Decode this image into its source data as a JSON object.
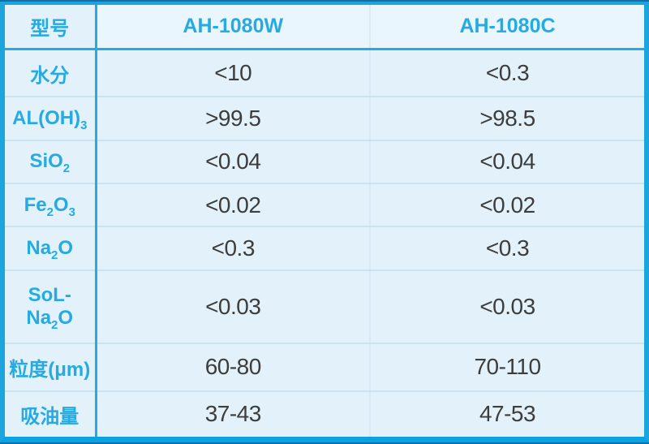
{
  "table": {
    "corner_label": "型号",
    "columns": [
      "AH-1080W",
      "AH-1080C"
    ],
    "rows": [
      {
        "label": [
          {
            "text": "水分"
          }
        ],
        "values": [
          "<10",
          "<0.3"
        ]
      },
      {
        "label": [
          {
            "text": "AL(OH)"
          },
          {
            "text": "3",
            "sub": true
          }
        ],
        "values": [
          ">99.5",
          ">98.5"
        ]
      },
      {
        "label": [
          {
            "text": "SiO"
          },
          {
            "text": "2",
            "sub": true
          }
        ],
        "values": [
          "<0.04",
          "<0.04"
        ]
      },
      {
        "label": [
          {
            "text": "Fe"
          },
          {
            "text": "2",
            "sub": true
          },
          {
            "text": "O"
          },
          {
            "text": "3",
            "sub": true
          }
        ],
        "values": [
          "<0.02",
          "<0.02"
        ]
      },
      {
        "label": [
          {
            "text": "Na"
          },
          {
            "text": "2",
            "sub": true
          },
          {
            "text": "O"
          }
        ],
        "values": [
          "<0.3",
          "<0.3"
        ]
      },
      {
        "label": [
          {
            "text": "SoL-Na"
          },
          {
            "text": "2",
            "sub": true
          },
          {
            "text": "O"
          }
        ],
        "values": [
          "<0.03",
          "<0.03"
        ]
      },
      {
        "label": [
          {
            "text": "粒度(μm)"
          }
        ],
        "values": [
          "60-80",
          "70-110"
        ]
      },
      {
        "label": [
          {
            "text": "吸油量"
          }
        ],
        "values": [
          "37-43",
          "47-53"
        ]
      }
    ]
  },
  "colors": {
    "accent": "#25aae1",
    "border_cyan": "#1ca4dd",
    "bottom_bar": "#0aa2e0",
    "navy_edge": "#1a6ba5",
    "cell_background": "#e2f1fa",
    "header_background": "#e9f6fd",
    "row_separator": "#cbe2ef",
    "faint_divider": "#d9ecf6",
    "value_text": "#3d3d3d"
  }
}
